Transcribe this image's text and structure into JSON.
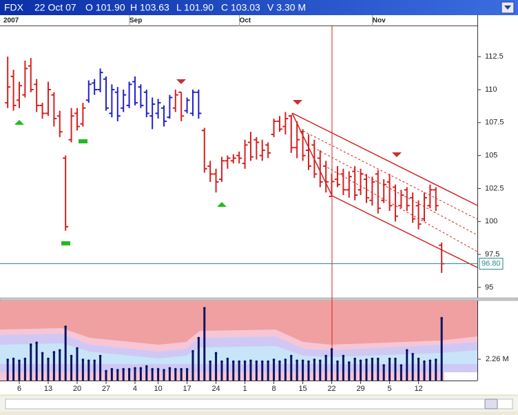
{
  "header": {
    "symbol": "FDX",
    "date": "22 Oct 07",
    "open": "O 101.90",
    "high": "H 103.63",
    "low": "L 101.90",
    "close": "C 103.03",
    "volume": "V 3.30 M"
  },
  "chart_data": [
    {
      "type": "ohlc",
      "year_label": "2007",
      "period_labels": [
        {
          "value": 22,
          "label": "Sep"
        },
        {
          "value": 41,
          "label": "Oct"
        },
        {
          "value": 64,
          "label": "Nov"
        }
      ],
      "xlim": [
        -1.33,
        81.17
      ],
      "ylim": [
        94.21,
        114.81
      ],
      "yticks": [
        95,
        97.5,
        100,
        102.5,
        105,
        107.5,
        110,
        112.5
      ],
      "last_price": {
        "value": 96.8,
        "label": "96.80"
      },
      "open": [
        109.0,
        111.0,
        109.2,
        109.6,
        111.8,
        110.4,
        108.8,
        108.2,
        109.6,
        108.0,
        104.8,
        106.2,
        108.2,
        107.4,
        109.2,
        110.5,
        110.0,
        110.8,
        108.2,
        109.8,
        108.6,
        108.8,
        110.6,
        110.2,
        109.8,
        108.0,
        108.2,
        108.6,
        107.9,
        108.6,
        109.8,
        108.4,
        108.2,
        109.8,
        106.9,
        104.2,
        103.6,
        103.2,
        104.6,
        104.6,
        105.0,
        104.4,
        106.0,
        106.2,
        105.0,
        105.8,
        106.6,
        107.6,
        107.2,
        108.0,
        105.6,
        106.8,
        105.4,
        105.8,
        104.8,
        104.2,
        101.9,
        103.2,
        103.6,
        102.4,
        103.8,
        102.4,
        103.2,
        101.6,
        103.6,
        101.6,
        103.0,
        102.6,
        101.2,
        102.4,
        101.8,
        101.2,
        100.2,
        101.2,
        102.4,
        98.2
      ],
      "high": [
        112.5,
        111.5,
        110.6,
        112.2,
        112.4,
        110.8,
        109.0,
        110.6,
        109.8,
        108.4,
        105.0,
        108.6,
        108.6,
        109.0,
        110.7,
        110.8,
        111.6,
        111.0,
        110.4,
        110.2,
        110.0,
        110.6,
        111.0,
        110.4,
        110.0,
        109.4,
        109.3,
        108.8,
        109.6,
        110.0,
        109.8,
        109.4,
        110.0,
        110.0,
        107.1,
        104.6,
        104.0,
        104.9,
        105.0,
        105.1,
        105.3,
        106.2,
        106.8,
        106.4,
        106.2,
        106.0,
        107.8,
        108.0,
        108.3,
        108.1,
        107.6,
        107.0,
        106.6,
        106.2,
        105.4,
        104.6,
        103.63,
        104.2,
        104.0,
        103.8,
        104.2,
        104.0,
        103.6,
        103.4,
        103.9,
        103.2,
        103.6,
        102.8,
        102.4,
        102.6,
        102.2,
        101.6,
        102.2,
        102.8,
        102.6,
        98.4
      ],
      "low": [
        108.6,
        108.4,
        108.6,
        109.4,
        109.8,
        108.3,
        107.8,
        108.0,
        107.2,
        106.4,
        99.3,
        106.0,
        106.9,
        107.2,
        109.0,
        109.6,
        109.8,
        108.4,
        107.9,
        107.6,
        108.3,
        108.6,
        108.8,
        108.6,
        107.9,
        107.0,
        107.8,
        107.2,
        107.8,
        108.3,
        107.6,
        108.2,
        108.0,
        107.8,
        103.7,
        103.0,
        102.2,
        103.0,
        104.0,
        104.4,
        104.4,
        104.0,
        104.6,
        104.7,
        104.6,
        104.8,
        106.4,
        106.8,
        106.6,
        105.2,
        104.8,
        104.6,
        103.9,
        103.3,
        102.6,
        102.2,
        101.9,
        102.6,
        102.0,
        101.8,
        101.6,
        102.0,
        101.4,
        101.2,
        100.6,
        101.4,
        100.8,
        100.0,
        101.0,
        100.8,
        99.9,
        99.4,
        100.0,
        101.0,
        100.8,
        96.1
      ],
      "close": [
        110.2,
        108.8,
        110.3,
        111.6,
        110.0,
        108.8,
        108.2,
        110.0,
        107.8,
        106.8,
        99.6,
        108.0,
        107.2,
        108.6,
        110.4,
        110.0,
        111.3,
        108.6,
        110.0,
        108.0,
        109.6,
        110.4,
        109.0,
        108.8,
        108.2,
        108.9,
        109.0,
        107.6,
        109.4,
        109.6,
        108.0,
        109.2,
        109.8,
        108.2,
        104.0,
        103.6,
        103.0,
        104.6,
        104.8,
        104.8,
        104.8,
        105.8,
        104.9,
        106.0,
        105.4,
        105.2,
        107.6,
        107.0,
        107.8,
        105.6,
        106.2,
        105.0,
        104.2,
        103.6,
        103.0,
        103.0,
        103.03,
        102.8,
        102.4,
        103.4,
        102.0,
        103.6,
        101.8,
        103.0,
        101.0,
        102.8,
        101.2,
        100.4,
        102.0,
        101.2,
        100.2,
        99.8,
        101.8,
        102.4,
        101.2,
        96.8
      ],
      "colors": [
        "#d42020",
        "#d42020",
        "#d42020",
        "#d42020",
        "#d42020",
        "#d42020",
        "#d42020",
        "#d42020",
        "#d42020",
        "#d42020",
        "#d42020",
        "#d42020",
        "#d42020",
        "#d42020",
        "#2020c8",
        "#2020c8",
        "#2020c8",
        "#2020c8",
        "#2020c8",
        "#2020c8",
        "#2020c8",
        "#2020c8",
        "#2020c8",
        "#2020c8",
        "#2020c8",
        "#2020c8",
        "#2020c8",
        "#2020c8",
        "#2020c8",
        "#d42020",
        "#d42020",
        "#2020c8",
        "#2020c8",
        "#2020c8",
        "#d42020",
        "#d42020",
        "#d42020",
        "#d42020",
        "#d42020",
        "#d42020",
        "#d42020",
        "#d42020",
        "#d42020",
        "#d42020",
        "#d42020",
        "#d42020",
        "#d42020",
        "#d42020",
        "#d42020",
        "#d42020",
        "#d42020",
        "#d42020",
        "#d42020",
        "#d42020",
        "#d42020",
        "#d42020",
        "#d42020",
        "#d42020",
        "#d42020",
        "#d42020",
        "#d42020",
        "#d42020",
        "#d42020",
        "#d42020",
        "#d42020",
        "#d42020",
        "#d42020",
        "#d42020",
        "#d42020",
        "#d42020",
        "#d42020",
        "#d42020",
        "#d42020",
        "#d42020",
        "#d42020",
        "#d42020"
      ]
    },
    {
      "type": "bar",
      "color": "#0a1460",
      "xlim": [
        -1.33,
        81.17
      ],
      "ylim": [
        0,
        8.47
      ],
      "yticks": [
        {
          "value": 2.26,
          "label": "2.26 M"
        }
      ],
      "xticks": [
        {
          "value": 2,
          "label": "6"
        },
        {
          "value": 7,
          "label": "13"
        },
        {
          "value": 12,
          "label": "20"
        },
        {
          "value": 17,
          "label": "27"
        },
        {
          "value": 22,
          "label": "4"
        },
        {
          "value": 26,
          "label": "10"
        },
        {
          "value": 31,
          "label": "17"
        },
        {
          "value": 36,
          "label": "24"
        },
        {
          "value": 41,
          "label": "1"
        },
        {
          "value": 46,
          "label": "8"
        },
        {
          "value": 51,
          "label": "15"
        },
        {
          "value": 56,
          "label": "22"
        },
        {
          "value": 61,
          "label": "29"
        },
        {
          "value": 66,
          "label": "5"
        },
        {
          "value": 71,
          "label": "12"
        }
      ],
      "values": [
        2.2,
        2.3,
        2.1,
        2.3,
        3.8,
        4.0,
        2.9,
        2.3,
        3.0,
        3.2,
        5.7,
        2.6,
        3.4,
        2.2,
        2.1,
        2.1,
        2.6,
        1.0,
        1.2,
        1.1,
        1.2,
        1.2,
        1.3,
        1.3,
        1.5,
        1.2,
        1.2,
        1.1,
        1.3,
        1.2,
        1.2,
        1.2,
        3.1,
        4.5,
        7.66,
        2.0,
        2.9,
        2.0,
        2.3,
        2.0,
        2.0,
        2.0,
        2.1,
        2.0,
        2.0,
        2.0,
        2.2,
        2.0,
        2.2,
        2.6,
        2.1,
        2.1,
        2.0,
        2.2,
        2.1,
        2.6,
        3.3,
        2.0,
        2.6,
        1.9,
        2.3,
        2.1,
        2.2,
        2.3,
        2.3,
        1.6,
        2.3,
        2.3,
        1.6,
        3.2,
        2.8,
        2.3,
        2.0,
        2.1,
        2.2,
        6.6
      ]
    }
  ]
}
